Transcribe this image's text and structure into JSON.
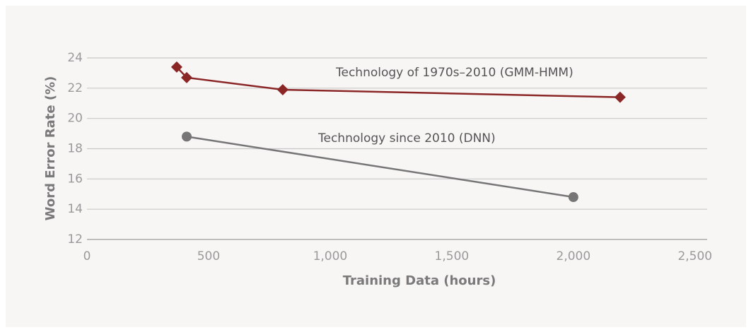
{
  "chart_data": {
    "type": "line",
    "xlabel": "Training Data (hours)",
    "ylabel": "Word Error Rate (%)",
    "xlim": [
      0,
      2550
    ],
    "ylim": [
      12,
      24
    ],
    "xticks": [
      0,
      500,
      {
        "value": 1000,
        "label": "1,000"
      },
      {
        "value": 1500,
        "label": "1,500"
      },
      {
        "value": 2000,
        "label": "2,000"
      },
      {
        "value": 2500,
        "label": "2,500"
      }
    ],
    "yticks": [
      12,
      14,
      16,
      18,
      20,
      22,
      24
    ],
    "grid": true,
    "series": [
      {
        "name": "Technology of 1970s–2010 (GMM-HMM)",
        "color": "#8b2626",
        "marker": "diamond",
        "x": [
          369,
          410,
          805,
          2192
        ],
        "values": [
          23.4,
          22.7,
          21.9,
          21.4
        ]
      },
      {
        "name": "Technology since 2010 (DNN)",
        "color": "#767676",
        "marker": "circle",
        "x": [
          410,
          2000
        ],
        "values": [
          18.8,
          14.8
        ]
      }
    ]
  }
}
